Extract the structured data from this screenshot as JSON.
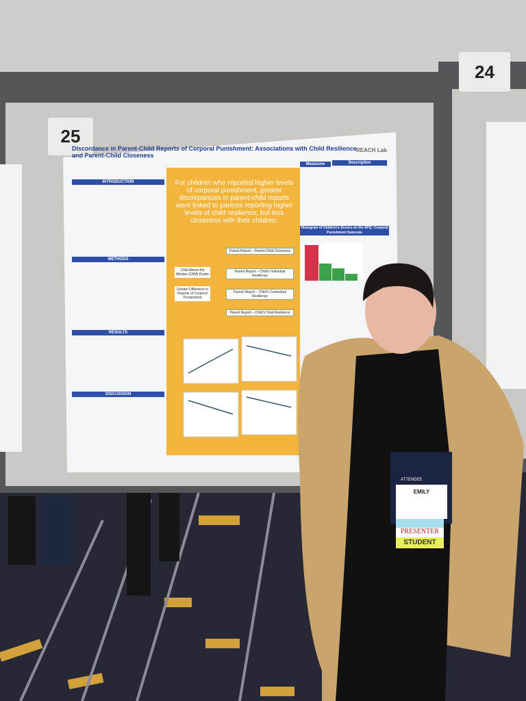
{
  "signs": {
    "left": "25",
    "right": "24"
  },
  "poster": {
    "title": "Discordance in Parent-Child Reports of Corporal Punishment: Associations with Child Resilience and Parent-Child Closeness",
    "logo": "REACH Lab",
    "sections": [
      "INTRODUCTION",
      "METHODS",
      "RESULTS",
      "DISCUSSION"
    ],
    "highlight": "For children who reported higher levels of corporal punishment, greater discrepancies in parent-child reports were linked to parents reporting higher levels of child resilience, but less closeness with their children.",
    "predictor": "Child Above the Median (CBM) Dyads",
    "moderator": "Greater Difference in Reports of Corporal Punishment",
    "outcomes": [
      "Parent Report – Parent-Child Closeness",
      "Parent Report – Child's Individual Resilience",
      "Parent Report – Child's Contextual Resilience",
      "Parent Report – Child's Total Resilience"
    ],
    "table_headers": [
      "Measures",
      "Description"
    ],
    "histogram_title": "Histogram of Children's Scores on the APQ: Corporal Punishment Subscale"
  },
  "badge": {
    "attendee": "ATTENDEE",
    "name": "EMILY",
    "role": "PRESENTER",
    "status": "STUDENT"
  }
}
